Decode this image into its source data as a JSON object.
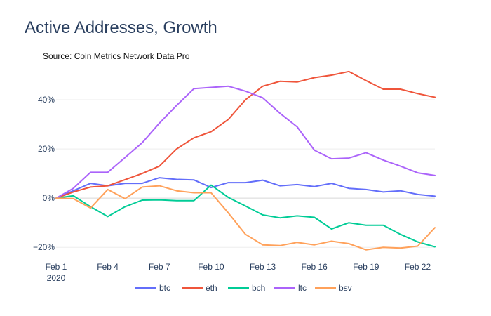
{
  "chart_data": {
    "type": "line",
    "title": "Active Addresses, Growth",
    "subtitle": "Source: Coin Metrics Network Data Pro",
    "xlabel": "",
    "ylabel": "",
    "x": [
      "2020-02-01",
      "2020-02-02",
      "2020-02-03",
      "2020-02-04",
      "2020-02-05",
      "2020-02-06",
      "2020-02-07",
      "2020-02-08",
      "2020-02-09",
      "2020-02-10",
      "2020-02-11",
      "2020-02-12",
      "2020-02-13",
      "2020-02-14",
      "2020-02-15",
      "2020-02-16",
      "2020-02-17",
      "2020-02-18",
      "2020-02-19",
      "2020-02-20",
      "2020-02-21",
      "2020-02-22",
      "2020-02-23"
    ],
    "x_ticks": [
      {
        "x": "2020-02-01",
        "label": "Feb 1",
        "sublabel": "2020"
      },
      {
        "x": "2020-02-04",
        "label": "Feb 4",
        "sublabel": ""
      },
      {
        "x": "2020-02-07",
        "label": "Feb 7",
        "sublabel": ""
      },
      {
        "x": "2020-02-10",
        "label": "Feb 10",
        "sublabel": ""
      },
      {
        "x": "2020-02-13",
        "label": "Feb 13",
        "sublabel": ""
      },
      {
        "x": "2020-02-16",
        "label": "Feb 16",
        "sublabel": ""
      },
      {
        "x": "2020-02-19",
        "label": "Feb 19",
        "sublabel": ""
      },
      {
        "x": "2020-02-22",
        "label": "Feb 22",
        "sublabel": ""
      }
    ],
    "y_ticks": [
      {
        "value": -0.2,
        "label": "−20%"
      },
      {
        "value": 0,
        "label": "0%"
      },
      {
        "value": 0.2,
        "label": "20%"
      },
      {
        "value": 0.4,
        "label": "40%"
      }
    ],
    "xlim": [
      "2020-02-01",
      "2020-02-23"
    ],
    "ylim": [
      -0.265,
      0.52
    ],
    "grid": true,
    "legend_position": "bottom",
    "series": [
      {
        "name": "btc",
        "color": "#636efa",
        "values": [
          0,
          0.03,
          0.06,
          0.05,
          0.06,
          0.06,
          0.083,
          0.076,
          0.074,
          0.043,
          0.063,
          0.063,
          0.073,
          0.05,
          0.055,
          0.047,
          0.06,
          0.04,
          0.035,
          0.025,
          0.03,
          0.015,
          0.008
        ]
      },
      {
        "name": "eth",
        "color": "#ef553b",
        "values": [
          0,
          0.025,
          0.045,
          0.05,
          0.075,
          0.1,
          0.13,
          0.2,
          0.245,
          0.27,
          0.32,
          0.4,
          0.455,
          0.475,
          0.472,
          0.49,
          0.5,
          0.515,
          0.478,
          0.443,
          0.443,
          0.425,
          0.41
        ]
      },
      {
        "name": "bch",
        "color": "#00cc96",
        "values": [
          0,
          0.01,
          -0.035,
          -0.075,
          -0.035,
          -0.008,
          -0.007,
          -0.01,
          -0.01,
          0.053,
          0.003,
          -0.032,
          -0.068,
          -0.08,
          -0.072,
          -0.078,
          -0.125,
          -0.1,
          -0.11,
          -0.11,
          -0.147,
          -0.178,
          -0.198
        ]
      },
      {
        "name": "ltc",
        "color": "#ab63fa",
        "values": [
          0,
          0.04,
          0.105,
          0.105,
          0.165,
          0.225,
          0.305,
          0.377,
          0.445,
          0.45,
          0.455,
          0.435,
          0.408,
          0.345,
          0.29,
          0.195,
          0.16,
          0.163,
          0.185,
          0.155,
          0.13,
          0.103,
          0.092
        ]
      },
      {
        "name": "bsv",
        "color": "#ffa15a",
        "values": [
          0,
          -0.002,
          -0.04,
          0.035,
          -0.002,
          0.045,
          0.05,
          0.03,
          0.022,
          0.022,
          -0.06,
          -0.147,
          -0.19,
          -0.193,
          -0.18,
          -0.19,
          -0.175,
          -0.185,
          -0.21,
          -0.2,
          -0.203,
          -0.195,
          -0.12
        ]
      }
    ]
  }
}
